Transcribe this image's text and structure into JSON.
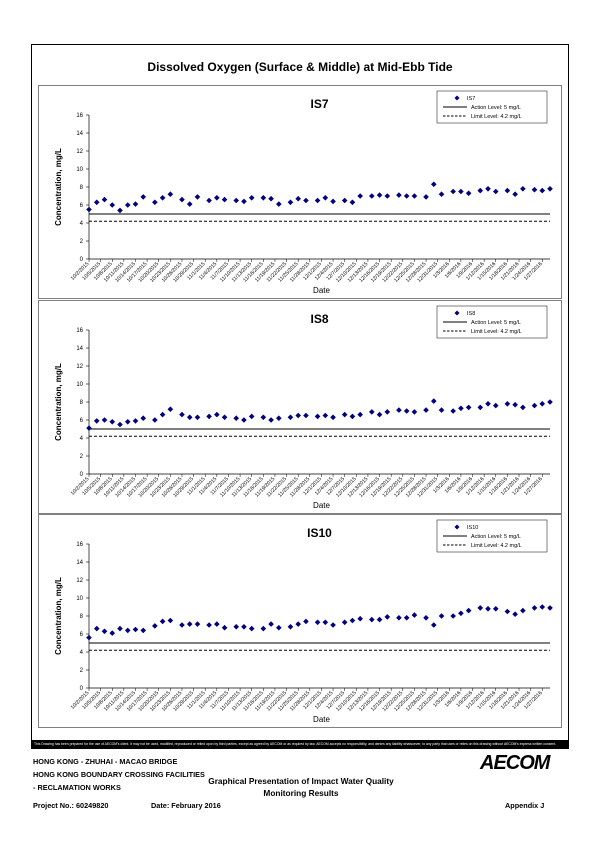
{
  "figure_title": "Dissolved Oxygen (Surface & Middle) at Mid-Ebb Tide",
  "disclaimer": "This Drawing has been prepared for the use of AECOM's client. It may not be used, modified, reproduced or relied upon by third parties, except as agreed by AECOM or as required by law. AECOM accepts no responsibility, and denies any liability whatsoever, to any party that uses or relies on this drawing without AECOM's express written consent.",
  "footer": {
    "project_lines": [
      "HONG KONG - ZHUHAI - MACAO BRIDGE",
      "HONG KONG BOUNDARY CROSSING FACILITIES",
      "- RECLAMATION WORKS"
    ],
    "report_title_lines": [
      "Graphical Presentation of Impact Water Quality",
      "Monitoring Results"
    ],
    "company": "AECOM",
    "project_no": "Project No.: 60249820",
    "date": "Date: February 2016",
    "appendix": "Appendix J"
  },
  "chart_data": [
    {
      "type": "scatter",
      "title": "IS7",
      "xlabel": "Date",
      "ylabel": "Concentration, mg/L",
      "ylim": [
        0,
        16
      ],
      "yticks": [
        0,
        2,
        4,
        6,
        8,
        10,
        12,
        14,
        16
      ],
      "x_tick_labels": [
        "10/2/2015",
        "10/5/2015",
        "10/8/2015",
        "10/11/2015",
        "10/14/2015",
        "10/17/2015",
        "10/20/2015",
        "10/23/2015",
        "10/26/2015",
        "10/29/2015",
        "11/1/2015",
        "11/4/2015",
        "11/7/2015",
        "11/10/2015",
        "11/13/2015",
        "11/16/2015",
        "11/19/2015",
        "11/22/2015",
        "11/25/2015",
        "11/28/2015",
        "12/1/2015",
        "12/4/2015",
        "12/7/2015",
        "12/10/2015",
        "12/13/2015",
        "12/16/2015",
        "12/19/2015",
        "12/22/2015",
        "12/25/2015",
        "12/28/2015",
        "12/31/2015",
        "1/3/2016",
        "1/6/2016",
        "1/9/2016",
        "1/12/2016",
        "1/15/2016",
        "1/18/2016",
        "1/21/2016",
        "1/24/2016",
        "1/27/2016"
      ],
      "x_start": "10/2/2015",
      "x_end": "1/29/2016",
      "legend_position": "top-right",
      "series": [
        {
          "name": "IS7",
          "marker": "diamond",
          "color": "#000080",
          "x": [
            "10/2/2015",
            "10/4/2015",
            "10/6/2015",
            "10/8/2015",
            "10/10/2015",
            "10/12/2015",
            "10/14/2015",
            "10/16/2015",
            "10/19/2015",
            "10/21/2015",
            "10/23/2015",
            "10/26/2015",
            "10/28/2015",
            "10/30/2015",
            "11/2/2015",
            "11/4/2015",
            "11/6/2015",
            "11/9/2015",
            "11/11/2015",
            "11/13/2015",
            "11/16/2015",
            "11/18/2015",
            "11/20/2015",
            "11/23/2015",
            "11/25/2015",
            "11/27/2015",
            "11/30/2015",
            "12/2/2015",
            "12/4/2015",
            "12/7/2015",
            "12/9/2015",
            "12/11/2015",
            "12/14/2015",
            "12/16/2015",
            "12/18/2015",
            "12/21/2015",
            "12/23/2015",
            "12/25/2015",
            "12/28/2015",
            "12/30/2015",
            "1/1/2016",
            "1/4/2016",
            "1/6/2016",
            "1/8/2016",
            "1/11/2016",
            "1/13/2016",
            "1/15/2016",
            "1/18/2016",
            "1/20/2016",
            "1/22/2016",
            "1/25/2016",
            "1/27/2016",
            "1/29/2016"
          ],
          "y": [
            5.5,
            6.3,
            6.6,
            6.0,
            5.4,
            6.0,
            6.1,
            6.9,
            6.3,
            6.8,
            7.2,
            6.6,
            6.1,
            6.9,
            6.5,
            6.8,
            6.6,
            6.5,
            6.4,
            6.8,
            6.8,
            6.7,
            6.1,
            6.3,
            6.7,
            6.5,
            6.5,
            6.8,
            6.4,
            6.5,
            6.3,
            7.0,
            7.0,
            7.1,
            7.0,
            7.1,
            7.0,
            7.0,
            6.9,
            8.3,
            7.2,
            7.5,
            7.5,
            7.3,
            7.6,
            7.8,
            7.5,
            7.6,
            7.2,
            7.8,
            7.7,
            7.6,
            7.8
          ]
        }
      ],
      "reference_lines": [
        {
          "name": "Action Level: 5 mg/L",
          "y": 5,
          "style": "solid"
        },
        {
          "name": "Limit Level: 4.2 mg/L",
          "y": 4.2,
          "style": "dashed"
        }
      ]
    },
    {
      "type": "scatter",
      "title": "IS8",
      "xlabel": "Date",
      "ylabel": "Concentration, mg/L",
      "ylim": [
        0,
        16
      ],
      "yticks": [
        0,
        2,
        4,
        6,
        8,
        10,
        12,
        14,
        16
      ],
      "x_tick_labels": [
        "10/2/2015",
        "10/5/2015",
        "10/8/2015",
        "10/11/2015",
        "10/14/2015",
        "10/17/2015",
        "10/20/2015",
        "10/23/2015",
        "10/26/2015",
        "10/29/2015",
        "11/1/2015",
        "11/4/2015",
        "11/7/2015",
        "11/10/2015",
        "11/13/2015",
        "11/16/2015",
        "11/19/2015",
        "11/22/2015",
        "11/25/2015",
        "11/28/2015",
        "12/1/2015",
        "12/4/2015",
        "12/7/2015",
        "12/10/2015",
        "12/13/2015",
        "12/16/2015",
        "12/19/2015",
        "12/22/2015",
        "12/25/2015",
        "12/28/2015",
        "12/31/2015",
        "1/3/2016",
        "1/6/2016",
        "1/9/2016",
        "1/12/2016",
        "1/15/2016",
        "1/18/2016",
        "1/21/2016",
        "1/24/2016",
        "1/27/2016"
      ],
      "x_start": "10/2/2015",
      "x_end": "1/29/2016",
      "legend_position": "top-right",
      "series": [
        {
          "name": "IS8",
          "marker": "diamond",
          "color": "#000080",
          "x": [
            "10/2/2015",
            "10/4/2015",
            "10/6/2015",
            "10/8/2015",
            "10/10/2015",
            "10/12/2015",
            "10/14/2015",
            "10/16/2015",
            "10/19/2015",
            "10/21/2015",
            "10/23/2015",
            "10/26/2015",
            "10/28/2015",
            "10/30/2015",
            "11/2/2015",
            "11/4/2015",
            "11/6/2015",
            "11/9/2015",
            "11/11/2015",
            "11/13/2015",
            "11/16/2015",
            "11/18/2015",
            "11/20/2015",
            "11/23/2015",
            "11/25/2015",
            "11/27/2015",
            "11/30/2015",
            "12/2/2015",
            "12/4/2015",
            "12/7/2015",
            "12/9/2015",
            "12/11/2015",
            "12/14/2015",
            "12/16/2015",
            "12/18/2015",
            "12/21/2015",
            "12/23/2015",
            "12/25/2015",
            "12/28/2015",
            "12/30/2015",
            "1/1/2016",
            "1/4/2016",
            "1/6/2016",
            "1/8/2016",
            "1/11/2016",
            "1/13/2016",
            "1/15/2016",
            "1/18/2016",
            "1/20/2016",
            "1/22/2016",
            "1/25/2016",
            "1/27/2016",
            "1/29/2016"
          ],
          "y": [
            5.1,
            5.9,
            6.0,
            5.8,
            5.5,
            5.8,
            5.9,
            6.2,
            6.0,
            6.6,
            7.2,
            6.6,
            6.3,
            6.3,
            6.4,
            6.6,
            6.3,
            6.2,
            6.0,
            6.4,
            6.3,
            6.0,
            6.2,
            6.3,
            6.5,
            6.5,
            6.4,
            6.5,
            6.3,
            6.6,
            6.4,
            6.6,
            6.9,
            6.6,
            6.9,
            7.1,
            7.0,
            6.9,
            7.1,
            8.1,
            7.1,
            7.0,
            7.3,
            7.4,
            7.4,
            7.8,
            7.6,
            7.8,
            7.7,
            7.4,
            7.6,
            7.8,
            8.0
          ]
        }
      ],
      "reference_lines": [
        {
          "name": "Action Level: 5 mg/L",
          "y": 5,
          "style": "solid"
        },
        {
          "name": "Limit Level: 4.2 mg/L",
          "y": 4.2,
          "style": "dashed"
        }
      ]
    },
    {
      "type": "scatter",
      "title": "IS10",
      "xlabel": "Date",
      "ylabel": "Concentration, mg/L",
      "ylim": [
        0,
        16
      ],
      "yticks": [
        0,
        2,
        4,
        6,
        8,
        10,
        12,
        14,
        16
      ],
      "x_tick_labels": [
        "10/2/2015",
        "10/5/2015",
        "10/8/2015",
        "10/11/2015",
        "10/14/2015",
        "10/17/2015",
        "10/20/2015",
        "10/23/2015",
        "10/26/2015",
        "10/29/2015",
        "11/1/2015",
        "11/4/2015",
        "11/7/2015",
        "11/10/2015",
        "11/13/2015",
        "11/16/2015",
        "11/19/2015",
        "11/22/2015",
        "11/25/2015",
        "11/28/2015",
        "12/1/2015",
        "12/4/2015",
        "12/7/2015",
        "12/10/2015",
        "12/13/2015",
        "12/16/2015",
        "12/19/2015",
        "12/22/2015",
        "12/25/2015",
        "12/28/2015",
        "12/31/2015",
        "1/3/2016",
        "1/6/2016",
        "1/9/2016",
        "1/12/2016",
        "1/15/2016",
        "1/18/2016",
        "1/21/2016",
        "1/24/2016",
        "1/27/2016"
      ],
      "x_start": "10/2/2015",
      "x_end": "1/29/2016",
      "legend_position": "top-right",
      "series": [
        {
          "name": "IS10",
          "marker": "diamond",
          "color": "#000080",
          "x": [
            "10/2/2015",
            "10/4/2015",
            "10/6/2015",
            "10/8/2015",
            "10/10/2015",
            "10/12/2015",
            "10/14/2015",
            "10/16/2015",
            "10/19/2015",
            "10/21/2015",
            "10/23/2015",
            "10/26/2015",
            "10/28/2015",
            "10/30/2015",
            "11/2/2015",
            "11/4/2015",
            "11/6/2015",
            "11/9/2015",
            "11/11/2015",
            "11/13/2015",
            "11/16/2015",
            "11/18/2015",
            "11/20/2015",
            "11/23/2015",
            "11/25/2015",
            "11/27/2015",
            "11/30/2015",
            "12/2/2015",
            "12/4/2015",
            "12/7/2015",
            "12/9/2015",
            "12/11/2015",
            "12/14/2015",
            "12/16/2015",
            "12/18/2015",
            "12/21/2015",
            "12/23/2015",
            "12/25/2015",
            "12/28/2015",
            "12/30/2015",
            "1/1/2016",
            "1/4/2016",
            "1/6/2016",
            "1/8/2016",
            "1/11/2016",
            "1/13/2016",
            "1/15/2016",
            "1/18/2016",
            "1/20/2016",
            "1/22/2016",
            "1/25/2016",
            "1/27/2016",
            "1/29/2016"
          ],
          "y": [
            5.6,
            6.6,
            6.3,
            6.1,
            6.6,
            6.4,
            6.5,
            6.4,
            6.9,
            7.4,
            7.5,
            7.0,
            7.1,
            7.1,
            7.0,
            7.1,
            6.7,
            6.8,
            6.8,
            6.6,
            6.6,
            7.1,
            6.7,
            6.8,
            7.1,
            7.4,
            7.3,
            7.3,
            7.0,
            7.3,
            7.5,
            7.7,
            7.6,
            7.6,
            7.9,
            7.8,
            7.8,
            8.1,
            7.8,
            7.0,
            8.0,
            8.0,
            8.3,
            8.6,
            8.9,
            8.8,
            8.8,
            8.5,
            8.2,
            8.6,
            8.9,
            9.0,
            8.9
          ]
        }
      ],
      "reference_lines": [
        {
          "name": "Action Level: 5 mg/L",
          "y": 5,
          "style": "solid"
        },
        {
          "name": "Limit Level: 4.2 mg/L",
          "y": 4.2,
          "style": "dashed"
        }
      ]
    }
  ]
}
